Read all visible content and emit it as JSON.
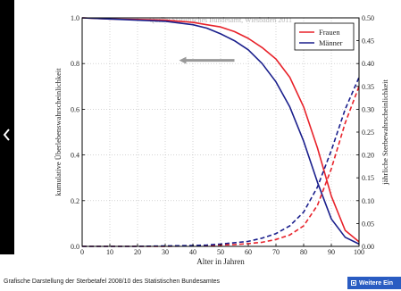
{
  "gallery": {
    "caption": "Grafische Darstellung der Sterbetafel 2008/10 des Statistischen Bundesamtes",
    "more_button": "Weitere Ein",
    "prev_icon": "chevron-left-icon",
    "more_icon": "info-icon",
    "accent_color": "#2a5cc2"
  },
  "chart_data": {
    "type": "line",
    "watermark": "Quelle: Statistisches Bundesamt, Wiesbaden 2011",
    "xlabel": "Alter in Jahren",
    "ylabel_left": "kumulative Überlebenswahrscheinlichkeit",
    "ylabel_right": "jährliche Sterbewahrscheinlichkeit",
    "xlim": [
      0,
      100
    ],
    "ylim_left": [
      0,
      1.0
    ],
    "ylim_right": [
      0,
      0.5
    ],
    "x_ticks": [
      "0",
      "10",
      "20",
      "30",
      "40",
      "50",
      "60",
      "70",
      "80",
      "90",
      "100"
    ],
    "y_ticks_left": [
      "0.0",
      "0.2",
      "0.4",
      "0.6",
      "0.8",
      "1.0"
    ],
    "y_ticks_right": [
      "0.00",
      "0.05",
      "0.10",
      "0.15",
      "0.20",
      "0.25",
      "0.30",
      "0.35",
      "0.40",
      "0.45",
      "0.50"
    ],
    "legend_position": "top-right",
    "grid": true,
    "x": [
      0,
      10,
      20,
      30,
      40,
      45,
      50,
      55,
      60,
      65,
      70,
      75,
      80,
      85,
      90,
      95,
      100
    ],
    "series": [
      {
        "name": "Frauen",
        "color": "#e8222a",
        "style": "solid",
        "axis": "left",
        "values": [
          1.0,
          0.995,
          0.993,
          0.99,
          0.98,
          0.97,
          0.96,
          0.94,
          0.91,
          0.87,
          0.82,
          0.74,
          0.61,
          0.43,
          0.22,
          0.07,
          0.02
        ]
      },
      {
        "name": "Männer",
        "color": "#1a1f8c",
        "style": "solid",
        "axis": "left",
        "values": [
          1.0,
          0.995,
          0.99,
          0.985,
          0.97,
          0.955,
          0.93,
          0.9,
          0.86,
          0.8,
          0.72,
          0.61,
          0.46,
          0.28,
          0.12,
          0.04,
          0.01
        ]
      },
      {
        "name": "Frauen",
        "color": "#e8222a",
        "style": "dashed",
        "axis": "right",
        "values": [
          0.0,
          0.0,
          0.0,
          0.0,
          0.001,
          0.002,
          0.003,
          0.004,
          0.006,
          0.009,
          0.015,
          0.025,
          0.045,
          0.09,
          0.17,
          0.27,
          0.35
        ]
      },
      {
        "name": "Männer",
        "color": "#1a1f8c",
        "style": "dashed",
        "axis": "right",
        "values": [
          0.0,
          0.0,
          0.0,
          0.001,
          0.002,
          0.003,
          0.005,
          0.008,
          0.011,
          0.018,
          0.028,
          0.045,
          0.075,
          0.13,
          0.21,
          0.3,
          0.37
        ]
      }
    ],
    "legend": [
      "Frauen",
      "Männer"
    ],
    "annotation_arrow": {
      "direction": "left",
      "color": "#999999",
      "x_from": 55,
      "x_to": 35,
      "y": 0.9
    }
  }
}
